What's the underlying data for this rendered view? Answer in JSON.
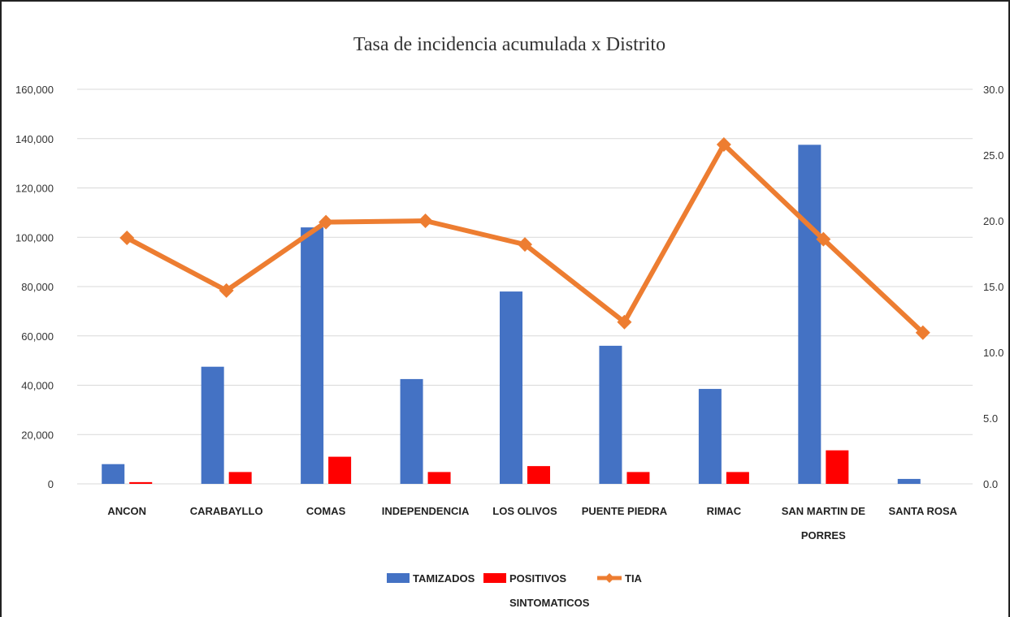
{
  "chart_data": {
    "type": "bar",
    "title": "Tasa de incidencia acumulada x Distrito",
    "categories": [
      [
        "ANCON"
      ],
      [
        "CARABAYLLO"
      ],
      [
        "COMAS"
      ],
      [
        "INDEPENDENCIA"
      ],
      [
        "LOS OLIVOS"
      ],
      [
        "PUENTE PIEDRA"
      ],
      [
        "RIMAC"
      ],
      [
        "SAN MARTIN DE",
        "PORRES"
      ],
      [
        "SANTA ROSA"
      ]
    ],
    "series": [
      {
        "name": "TAMIZADOS",
        "type": "bar",
        "axis": "left",
        "color": "#4472C4",
        "values": [
          8000,
          47500,
          104000,
          42500,
          78000,
          56000,
          38500,
          137500,
          2000
        ]
      },
      {
        "name": "POSITIVOS SINTOMATICOS",
        "type": "bar",
        "axis": "left",
        "color": "#FF0000",
        "values": [
          700,
          4800,
          11000,
          4800,
          7200,
          4800,
          4800,
          13600,
          0
        ]
      },
      {
        "name": "TIA",
        "type": "line",
        "axis": "right",
        "color": "#ED7D31",
        "values": [
          18.7,
          14.7,
          19.9,
          20.0,
          18.2,
          12.3,
          25.8,
          18.6,
          11.5
        ]
      }
    ],
    "y_left": {
      "ylim": [
        0,
        160000
      ],
      "ticks": [
        "0",
        "20,000",
        "40,000",
        "60,000",
        "80,000",
        "100,000",
        "120,000",
        "140,000",
        "160,000"
      ]
    },
    "y_right": {
      "ylim": [
        0,
        30
      ],
      "ticks": [
        "0.0",
        "5.0",
        "10.0",
        "15.0",
        "20.0",
        "25.0",
        "30.0"
      ]
    },
    "grid": true,
    "legend": {
      "position": "bottom",
      "items": [
        {
          "label_lines": [
            "TAMIZADOS"
          ],
          "color": "#4472C4",
          "kind": "bar"
        },
        {
          "label_lines": [
            "POSITIVOS",
            "SINTOMATICOS"
          ],
          "color": "#FF0000",
          "kind": "bar"
        },
        {
          "label_lines": [
            "TIA"
          ],
          "color": "#ED7D31",
          "kind": "line"
        }
      ]
    }
  }
}
